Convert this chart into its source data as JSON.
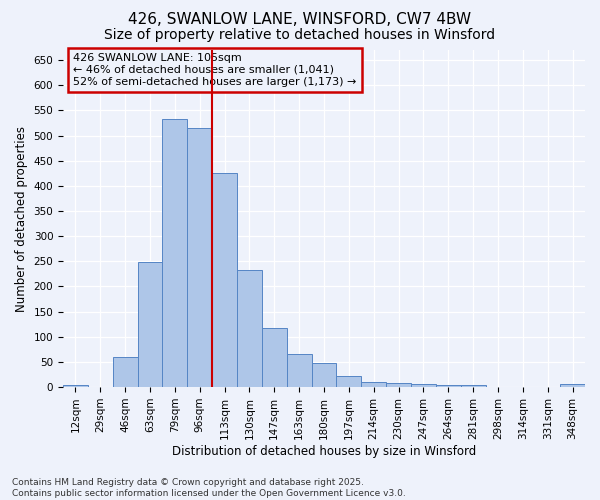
{
  "title1": "426, SWANLOW LANE, WINSFORD, CW7 4BW",
  "title2": "Size of property relative to detached houses in Winsford",
  "xlabel": "Distribution of detached houses by size in Winsford",
  "ylabel": "Number of detached properties",
  "categories": [
    "12sqm",
    "29sqm",
    "46sqm",
    "63sqm",
    "79sqm",
    "96sqm",
    "113sqm",
    "130sqm",
    "147sqm",
    "163sqm",
    "180sqm",
    "197sqm",
    "214sqm",
    "230sqm",
    "247sqm",
    "264sqm",
    "281sqm",
    "298sqm",
    "314sqm",
    "331sqm",
    "348sqm"
  ],
  "values": [
    5,
    0,
    60,
    248,
    533,
    515,
    425,
    232,
    117,
    65,
    47,
    22,
    10,
    9,
    6,
    5,
    4,
    1,
    0,
    0,
    7
  ],
  "bar_color": "#aec6e8",
  "bar_edge_color": "#5585c5",
  "vline_x": 5.5,
  "vline_color": "#cc0000",
  "annotation_text": "426 SWANLOW LANE: 105sqm\n← 46% of detached houses are smaller (1,041)\n52% of semi-detached houses are larger (1,173) →",
  "box_color": "#cc0000",
  "ylim": [
    0,
    670
  ],
  "yticks": [
    0,
    50,
    100,
    150,
    200,
    250,
    300,
    350,
    400,
    450,
    500,
    550,
    600,
    650
  ],
  "footnote": "Contains HM Land Registry data © Crown copyright and database right 2025.\nContains public sector information licensed under the Open Government Licence v3.0.",
  "bg_color": "#eef2fb",
  "grid_color": "#ffffff",
  "title_fontsize": 11,
  "subtitle_fontsize": 10,
  "axis_label_fontsize": 8.5,
  "tick_fontsize": 7.5,
  "annotation_fontsize": 8,
  "footnote_fontsize": 6.5
}
